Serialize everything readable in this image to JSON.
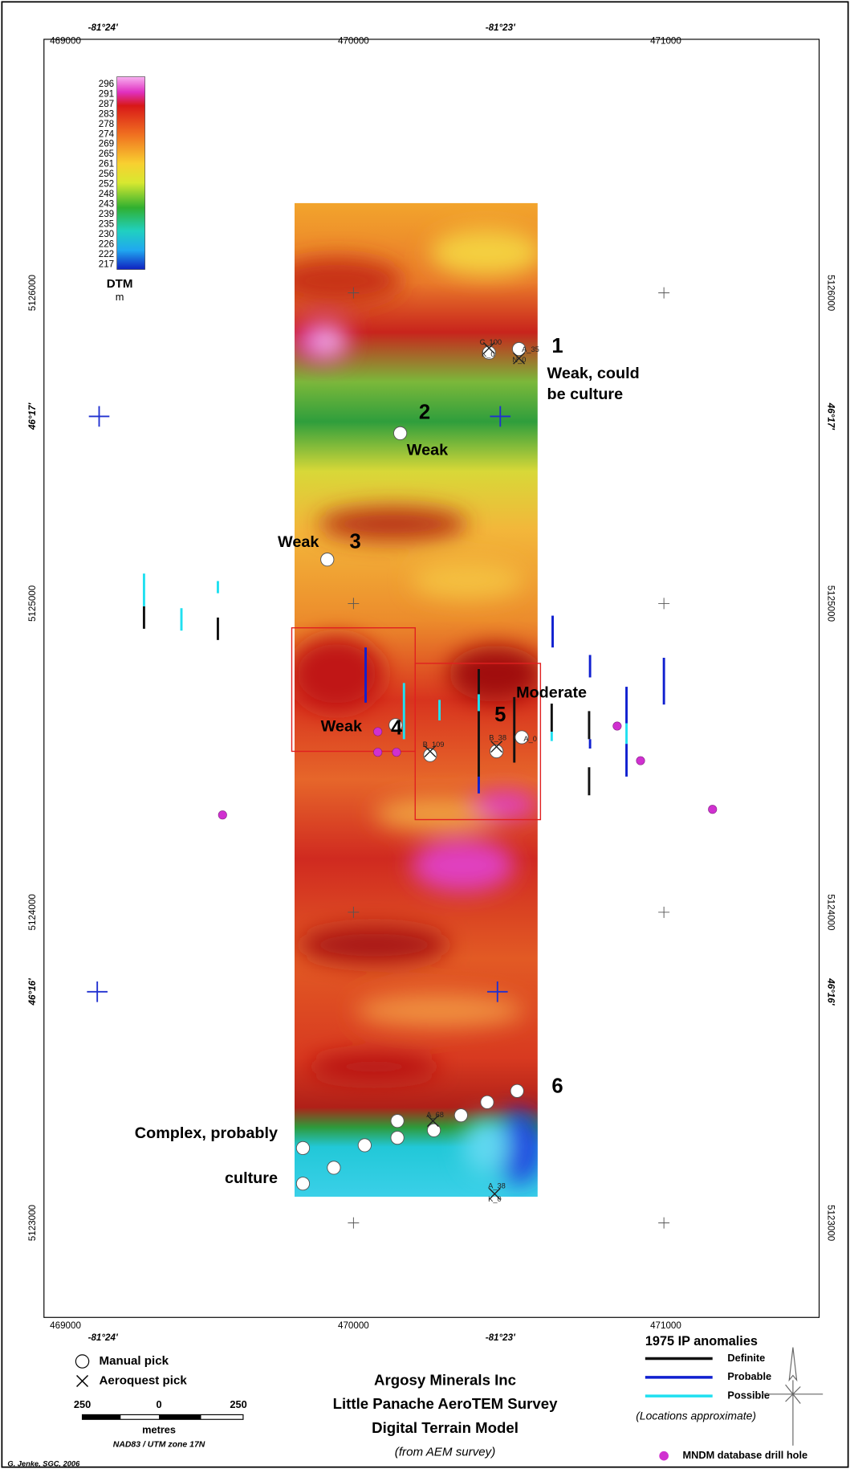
{
  "map": {
    "top_axis": [
      "469000",
      "-81°24'",
      "470000",
      "-81°23'",
      "471000"
    ],
    "bottom_axis": [
      "469000",
      "-81°24'",
      "470000",
      "-81°23'",
      "471000"
    ],
    "left_axis": [
      "5126000",
      "46°17'",
      "5125000",
      "5124000",
      "46°16'",
      "5123000"
    ],
    "right_axis": [
      "5126000",
      "46°17'",
      "5125000",
      "5124000",
      "46°16'",
      "5123000"
    ],
    "colorbar": {
      "title": "DTM",
      "unit": "m",
      "labels": [
        296,
        291,
        287,
        283,
        278,
        274,
        269,
        265,
        261,
        256,
        252,
        248,
        243,
        239,
        235,
        230,
        226,
        222,
        217
      ]
    },
    "annotations": [
      "1",
      "Weak, could",
      "be culture",
      "2",
      "Weak",
      "Weak",
      "3",
      "Weak",
      "4",
      "5",
      "Moderate",
      "6",
      "Complex, probably",
      "culture"
    ],
    "pick_labels": [
      "C_100",
      "K_0",
      "A_35",
      "N_0",
      "B_109",
      "B_38",
      "A_0",
      "A_68",
      "A_38",
      "K_0"
    ]
  },
  "legend": {
    "manual": "Manual pick",
    "aeroquest": "Aeroquest pick",
    "scale": [
      "250",
      "0",
      "250"
    ],
    "scale_unit": "metres",
    "projection": "NAD83 / UTM zone 17N",
    "ip_title": "1975 IP anomalies",
    "ip": [
      "Definite",
      "Probable",
      "Possible"
    ],
    "ip_note": "(Locations approximate)",
    "drill": "MNDM database drill hole"
  },
  "title": [
    "Argosy Minerals Inc",
    "Little Panache AeroTEM Survey",
    "Digital Terrain Model",
    "(from AEM survey)"
  ],
  "credit": "G. Jenke, SGC, 2006"
}
